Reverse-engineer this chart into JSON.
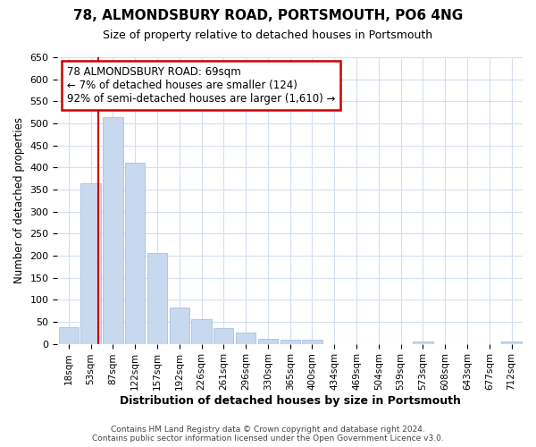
{
  "title": "78, ALMONDSBURY ROAD, PORTSMOUTH, PO6 4NG",
  "subtitle": "Size of property relative to detached houses in Portsmouth",
  "xlabel": "Distribution of detached houses by size in Portsmouth",
  "ylabel": "Number of detached properties",
  "bar_labels": [
    "18sqm",
    "53sqm",
    "87sqm",
    "122sqm",
    "157sqm",
    "192sqm",
    "226sqm",
    "261sqm",
    "296sqm",
    "330sqm",
    "365sqm",
    "400sqm",
    "434sqm",
    "469sqm",
    "504sqm",
    "539sqm",
    "573sqm",
    "608sqm",
    "643sqm",
    "677sqm",
    "712sqm"
  ],
  "bar_values": [
    38,
    365,
    515,
    410,
    205,
    83,
    55,
    35,
    25,
    12,
    10,
    10,
    0,
    0,
    0,
    0,
    5,
    0,
    0,
    0,
    5
  ],
  "bar_color": "#c8d8ee",
  "bar_edge_color": "#a8c0dc",
  "red_line_x": 1.35,
  "annotation_text": "78 ALMONDSBURY ROAD: 69sqm\n← 7% of detached houses are smaller (124)\n92% of semi-detached houses are larger (1,610) →",
  "annotation_box_color": "#ffffff",
  "annotation_box_edge_color": "#cc0000",
  "red_line_color": "#cc0000",
  "ylim": [
    0,
    650
  ],
  "yticks": [
    0,
    50,
    100,
    150,
    200,
    250,
    300,
    350,
    400,
    450,
    500,
    550,
    600,
    650
  ],
  "grid_color": "#d4dff0",
  "footer_line1": "Contains HM Land Registry data © Crown copyright and database right 2024.",
  "footer_line2": "Contains public sector information licensed under the Open Government Licence v3.0.",
  "bg_color": "#ffffff"
}
